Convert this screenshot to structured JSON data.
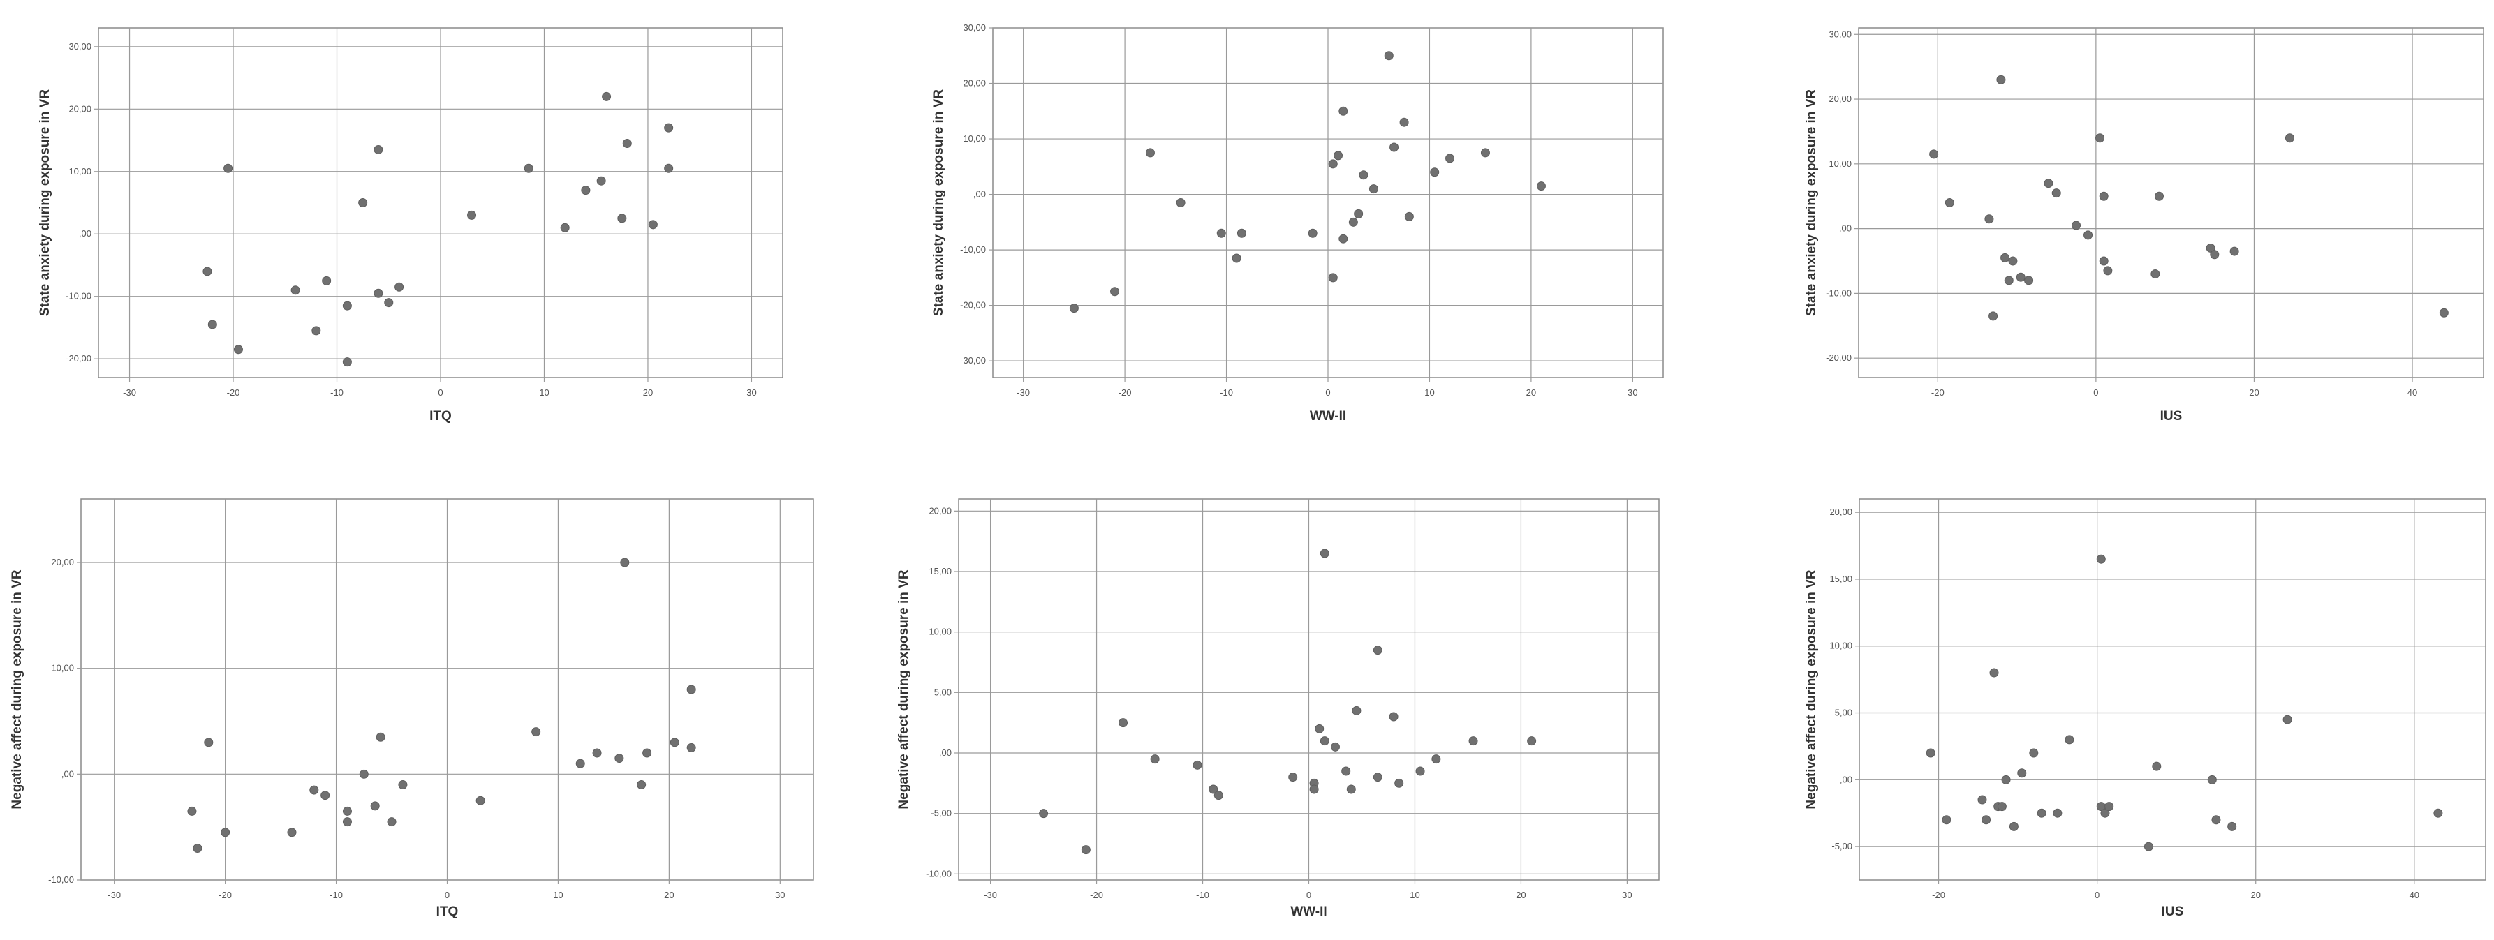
{
  "chart_data": [
    {
      "type": "scatter",
      "xlabel": "ITQ",
      "ylabel": "State anxiety during exposure in VR",
      "xlim": [
        -33,
        33
      ],
      "ylim": [
        -23,
        33
      ],
      "x_ticks": [
        -30,
        -20,
        -10,
        0,
        10,
        20,
        30
      ],
      "x_tick_labels": [
        "-30",
        "-20",
        "-10",
        "0",
        "10",
        "20",
        "30"
      ],
      "y_ticks": [
        -20,
        -10,
        0,
        10,
        20,
        30
      ],
      "y_tick_labels": [
        "-20,00",
        "-10,00",
        ",00",
        "10,00",
        "20,00",
        "30,00"
      ],
      "grid": true,
      "points": [
        {
          "x": -22.5,
          "y": -6
        },
        {
          "x": -22,
          "y": -14.5
        },
        {
          "x": -20.5,
          "y": 10.5
        },
        {
          "x": -19.5,
          "y": -18.5
        },
        {
          "x": -14,
          "y": -9
        },
        {
          "x": -12,
          "y": -15.5
        },
        {
          "x": -11,
          "y": -7.5
        },
        {
          "x": -9,
          "y": -11.5
        },
        {
          "x": -9,
          "y": -20.5
        },
        {
          "x": -7.5,
          "y": 5
        },
        {
          "x": -6,
          "y": 13.5
        },
        {
          "x": -6,
          "y": -9.5
        },
        {
          "x": -5,
          "y": -11
        },
        {
          "x": -4,
          "y": -8.5
        },
        {
          "x": 3,
          "y": 3
        },
        {
          "x": 8.5,
          "y": 10.5
        },
        {
          "x": 12,
          "y": 1
        },
        {
          "x": 14,
          "y": 7
        },
        {
          "x": 15.5,
          "y": 8.5
        },
        {
          "x": 16,
          "y": 22
        },
        {
          "x": 17.5,
          "y": 2.5
        },
        {
          "x": 18,
          "y": 14.5
        },
        {
          "x": 20.5,
          "y": 1.5
        },
        {
          "x": 22,
          "y": 17
        },
        {
          "x": 22,
          "y": 10.5
        }
      ]
    },
    {
      "type": "scatter",
      "xlabel": "WW-II",
      "ylabel": "State anxiety during exposure in VR",
      "xlim": [
        -33,
        33
      ],
      "ylim": [
        -33,
        30
      ],
      "x_ticks": [
        -30,
        -20,
        -10,
        0,
        10,
        20,
        30
      ],
      "x_tick_labels": [
        "-30",
        "-20",
        "-10",
        "0",
        "10",
        "20",
        "30"
      ],
      "y_ticks": [
        -30,
        -20,
        -10,
        0,
        10,
        20,
        30
      ],
      "y_tick_labels": [
        "-30,00",
        "-20,00",
        "-10,00",
        ",00",
        "10,00",
        "20,00",
        "30,00"
      ],
      "grid": true,
      "points": [
        {
          "x": -25,
          "y": -20.5
        },
        {
          "x": -21,
          "y": -17.5
        },
        {
          "x": -17.5,
          "y": 7.5
        },
        {
          "x": -14.5,
          "y": -1.5
        },
        {
          "x": -10.5,
          "y": -7
        },
        {
          "x": -9,
          "y": -11.5
        },
        {
          "x": -8.5,
          "y": -7
        },
        {
          "x": -1.5,
          "y": -7
        },
        {
          "x": 0.5,
          "y": -15
        },
        {
          "x": 0.5,
          "y": 5.5
        },
        {
          "x": 1,
          "y": 7
        },
        {
          "x": 1.5,
          "y": 15
        },
        {
          "x": 1.5,
          "y": -8
        },
        {
          "x": 2.5,
          "y": -5
        },
        {
          "x": 3,
          "y": -3.5
        },
        {
          "x": 3.5,
          "y": 3.5
        },
        {
          "x": 4.5,
          "y": 1
        },
        {
          "x": 6,
          "y": 25
        },
        {
          "x": 6.5,
          "y": 8.5
        },
        {
          "x": 7.5,
          "y": 13
        },
        {
          "x": 8,
          "y": -4
        },
        {
          "x": 10.5,
          "y": 4
        },
        {
          "x": 12,
          "y": 6.5
        },
        {
          "x": 15.5,
          "y": 7.5
        },
        {
          "x": 21,
          "y": 1.5
        }
      ]
    },
    {
      "type": "scatter",
      "xlabel": "IUS",
      "ylabel": "State anxiety during exposure in VR",
      "xlim": [
        -30,
        49
      ],
      "ylim": [
        -23,
        31
      ],
      "x_ticks": [
        -20,
        0,
        20,
        40
      ],
      "x_tick_labels": [
        "-20",
        "0",
        "20",
        "40"
      ],
      "y_ticks": [
        -20,
        -10,
        0,
        10,
        20,
        30
      ],
      "y_tick_labels": [
        "-20,00",
        "-10,00",
        ",00",
        "10,00",
        "20,00",
        "30,00"
      ],
      "grid": true,
      "points": [
        {
          "x": -20.5,
          "y": 11.5
        },
        {
          "x": -18.5,
          "y": 4
        },
        {
          "x": -13.5,
          "y": 1.5
        },
        {
          "x": -13,
          "y": -13.5
        },
        {
          "x": -12,
          "y": 23
        },
        {
          "x": -11.5,
          "y": -4.5
        },
        {
          "x": -11,
          "y": -8
        },
        {
          "x": -10.5,
          "y": -5
        },
        {
          "x": -9.5,
          "y": -7.5
        },
        {
          "x": -8.5,
          "y": -8
        },
        {
          "x": -6,
          "y": 7
        },
        {
          "x": -5,
          "y": 5.5
        },
        {
          "x": -2.5,
          "y": 0.5
        },
        {
          "x": -1,
          "y": -1
        },
        {
          "x": 0.5,
          "y": 14
        },
        {
          "x": 1,
          "y": -5
        },
        {
          "x": 1,
          "y": 5
        },
        {
          "x": 1.5,
          "y": -6.5
        },
        {
          "x": 7.5,
          "y": -7
        },
        {
          "x": 8,
          "y": 5
        },
        {
          "x": 14.5,
          "y": -3
        },
        {
          "x": 15,
          "y": -4
        },
        {
          "x": 17.5,
          "y": -3.5
        },
        {
          "x": 24.5,
          "y": 14
        },
        {
          "x": 44,
          "y": -13
        }
      ]
    },
    {
      "type": "scatter",
      "xlabel": "ITQ",
      "ylabel": "Negative affect during exposure in VR",
      "xlim": [
        -33,
        33
      ],
      "ylim": [
        -10,
        26
      ],
      "x_ticks": [
        -30,
        -20,
        -10,
        0,
        10,
        20,
        30
      ],
      "x_tick_labels": [
        "-30",
        "-20",
        "-10",
        "0",
        "10",
        "20",
        "30"
      ],
      "y_ticks": [
        -10,
        0,
        10,
        20
      ],
      "y_tick_labels": [
        "-10,00",
        ",00",
        "10,00",
        "20,00"
      ],
      "grid": true,
      "points": [
        {
          "x": -23,
          "y": -3.5
        },
        {
          "x": -22.5,
          "y": -7
        },
        {
          "x": -21.5,
          "y": 3
        },
        {
          "x": -20,
          "y": -5.5
        },
        {
          "x": -14,
          "y": -5.5
        },
        {
          "x": -12,
          "y": -1.5
        },
        {
          "x": -11,
          "y": -2
        },
        {
          "x": -9,
          "y": -3.5
        },
        {
          "x": -9,
          "y": -4.5
        },
        {
          "x": -7.5,
          "y": 0
        },
        {
          "x": -6.5,
          "y": -3
        },
        {
          "x": -6,
          "y": 3.5
        },
        {
          "x": -5,
          "y": -4.5
        },
        {
          "x": -4,
          "y": -1
        },
        {
          "x": 3,
          "y": -2.5
        },
        {
          "x": 8,
          "y": 4
        },
        {
          "x": 12,
          "y": 1
        },
        {
          "x": 13.5,
          "y": 2
        },
        {
          "x": 15.5,
          "y": 1.5
        },
        {
          "x": 16,
          "y": 20
        },
        {
          "x": 17.5,
          "y": -1
        },
        {
          "x": 18,
          "y": 2
        },
        {
          "x": 20.5,
          "y": 3
        },
        {
          "x": 22,
          "y": 8
        },
        {
          "x": 22,
          "y": 2.5
        }
      ]
    },
    {
      "type": "scatter",
      "xlabel": "WW-II",
      "ylabel": "Negative affect during exposure in VR",
      "xlim": [
        -33,
        33
      ],
      "ylim": [
        -10.5,
        21
      ],
      "x_ticks": [
        -30,
        -20,
        -10,
        0,
        10,
        20,
        30
      ],
      "x_tick_labels": [
        "-30",
        "-20",
        "-10",
        "0",
        "10",
        "20",
        "30"
      ],
      "y_ticks": [
        -10,
        -5,
        0,
        5,
        10,
        15,
        20
      ],
      "y_tick_labels": [
        "-10,00",
        "-5,00",
        ",00",
        "5,00",
        "10,00",
        "15,00",
        "20,00"
      ],
      "grid": true,
      "points": [
        {
          "x": -25,
          "y": -5
        },
        {
          "x": -21,
          "y": -8
        },
        {
          "x": -17.5,
          "y": 2.5
        },
        {
          "x": -14.5,
          "y": -0.5
        },
        {
          "x": -10.5,
          "y": -1
        },
        {
          "x": -9,
          "y": -3
        },
        {
          "x": -8.5,
          "y": -3.5
        },
        {
          "x": -1.5,
          "y": -2
        },
        {
          "x": 0.5,
          "y": -2.5
        },
        {
          "x": 0.5,
          "y": -3
        },
        {
          "x": 1,
          "y": 2
        },
        {
          "x": 1.5,
          "y": 16.5
        },
        {
          "x": 1.5,
          "y": 1
        },
        {
          "x": 2.5,
          "y": 0.5
        },
        {
          "x": 3.5,
          "y": -1.5
        },
        {
          "x": 4,
          "y": -3
        },
        {
          "x": 4.5,
          "y": 3.5
        },
        {
          "x": 6.5,
          "y": 8.5
        },
        {
          "x": 6.5,
          "y": -2
        },
        {
          "x": 8,
          "y": 3
        },
        {
          "x": 8.5,
          "y": -2.5
        },
        {
          "x": 10.5,
          "y": -1.5
        },
        {
          "x": 12,
          "y": -0.5
        },
        {
          "x": 15.5,
          "y": 1
        },
        {
          "x": 21,
          "y": 1
        }
      ]
    },
    {
      "type": "scatter",
      "xlabel": "IUS",
      "ylabel": "Negative affect during exposure in VR",
      "xlim": [
        -30,
        49
      ],
      "ylim": [
        -7.5,
        21
      ],
      "x_ticks": [
        -20,
        0,
        20,
        40
      ],
      "x_tick_labels": [
        "-20",
        "0",
        "20",
        "40"
      ],
      "y_ticks": [
        -5,
        0,
        5,
        10,
        15,
        20
      ],
      "y_tick_labels": [
        "-5,00",
        ",00",
        "5,00",
        "10,00",
        "15,00",
        "20,00"
      ],
      "grid": true,
      "points": [
        {
          "x": -21,
          "y": 2
        },
        {
          "x": -19,
          "y": -3
        },
        {
          "x": -14.5,
          "y": -1.5
        },
        {
          "x": -14,
          "y": -3
        },
        {
          "x": -13,
          "y": 8
        },
        {
          "x": -12.5,
          "y": -2
        },
        {
          "x": -12,
          "y": -2
        },
        {
          "x": -11.5,
          "y": 0
        },
        {
          "x": -10.5,
          "y": -3.5
        },
        {
          "x": -9.5,
          "y": 0.5
        },
        {
          "x": -8,
          "y": 2
        },
        {
          "x": -7,
          "y": -2.5
        },
        {
          "x": -5,
          "y": -2.5
        },
        {
          "x": -3.5,
          "y": 3
        },
        {
          "x": 0.5,
          "y": 16.5
        },
        {
          "x": 0.5,
          "y": -2
        },
        {
          "x": 1,
          "y": -2.5
        },
        {
          "x": 1.5,
          "y": -2
        },
        {
          "x": 6.5,
          "y": -5
        },
        {
          "x": 7.5,
          "y": 1
        },
        {
          "x": 14.5,
          "y": 0
        },
        {
          "x": 15,
          "y": -3
        },
        {
          "x": 17,
          "y": -3.5
        },
        {
          "x": 24,
          "y": 4.5
        },
        {
          "x": 43,
          "y": -2.5
        }
      ]
    }
  ]
}
